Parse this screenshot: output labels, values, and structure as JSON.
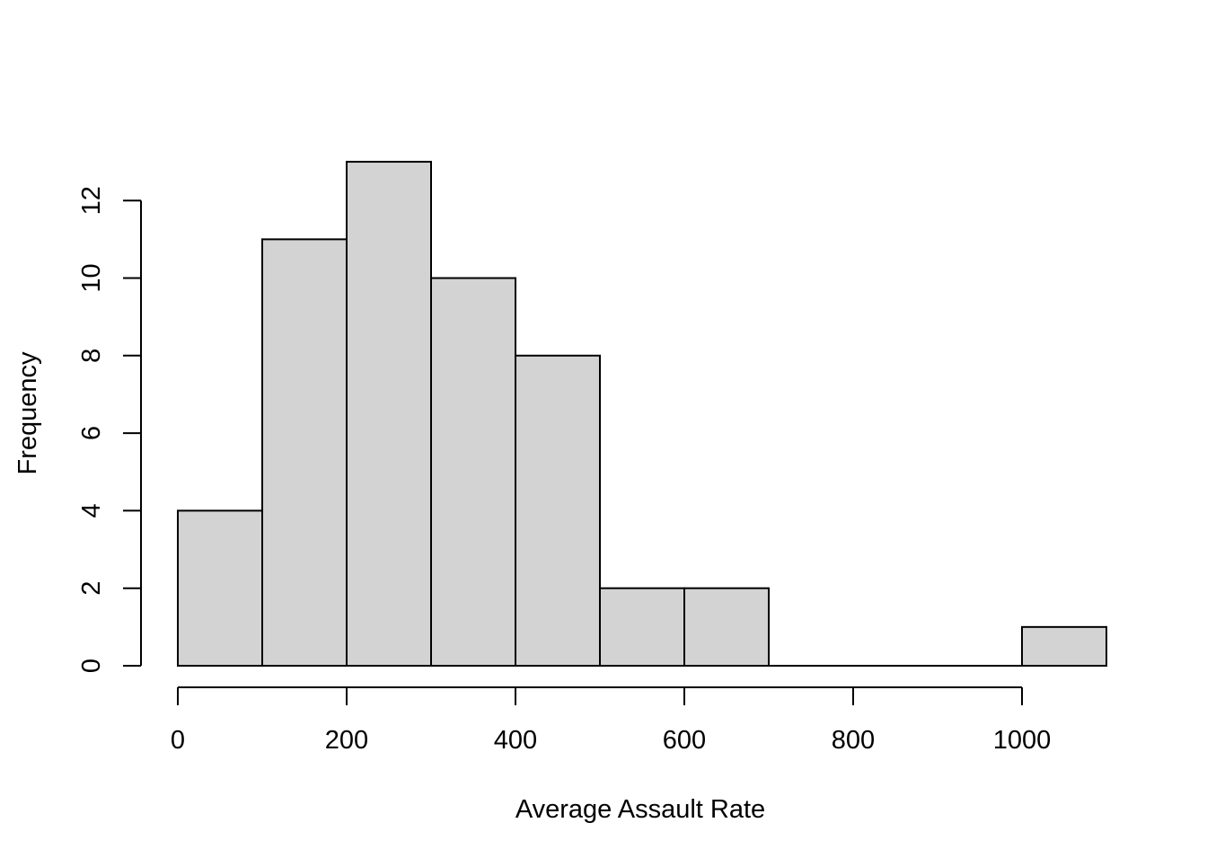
{
  "chart_data": {
    "type": "bar",
    "subtype": "histogram",
    "title": "",
    "xlabel": "Average Assault Rate",
    "ylabel": "Frequency",
    "bin_width": 100,
    "bin_edges": [
      0,
      100,
      200,
      300,
      400,
      500,
      600,
      700,
      800,
      900,
      1000,
      1100
    ],
    "categories": [
      "0-100",
      "100-200",
      "200-300",
      "300-400",
      "400-500",
      "500-600",
      "600-700",
      "700-800",
      "800-900",
      "900-1000",
      "1000-1100"
    ],
    "values": [
      4,
      11,
      13,
      10,
      8,
      2,
      2,
      0,
      0,
      0,
      1
    ],
    "x_ticks": [
      0,
      200,
      400,
      600,
      800,
      1000
    ],
    "y_ticks": [
      0,
      2,
      4,
      6,
      8,
      10,
      12
    ],
    "xlim": [
      0,
      1100
    ],
    "ylim": [
      0,
      13
    ],
    "grid": false,
    "legend": "none",
    "bar_fill": "#d3d3d3",
    "bar_stroke": "#000000",
    "axis_color": "#000000",
    "background": "#ffffff"
  }
}
